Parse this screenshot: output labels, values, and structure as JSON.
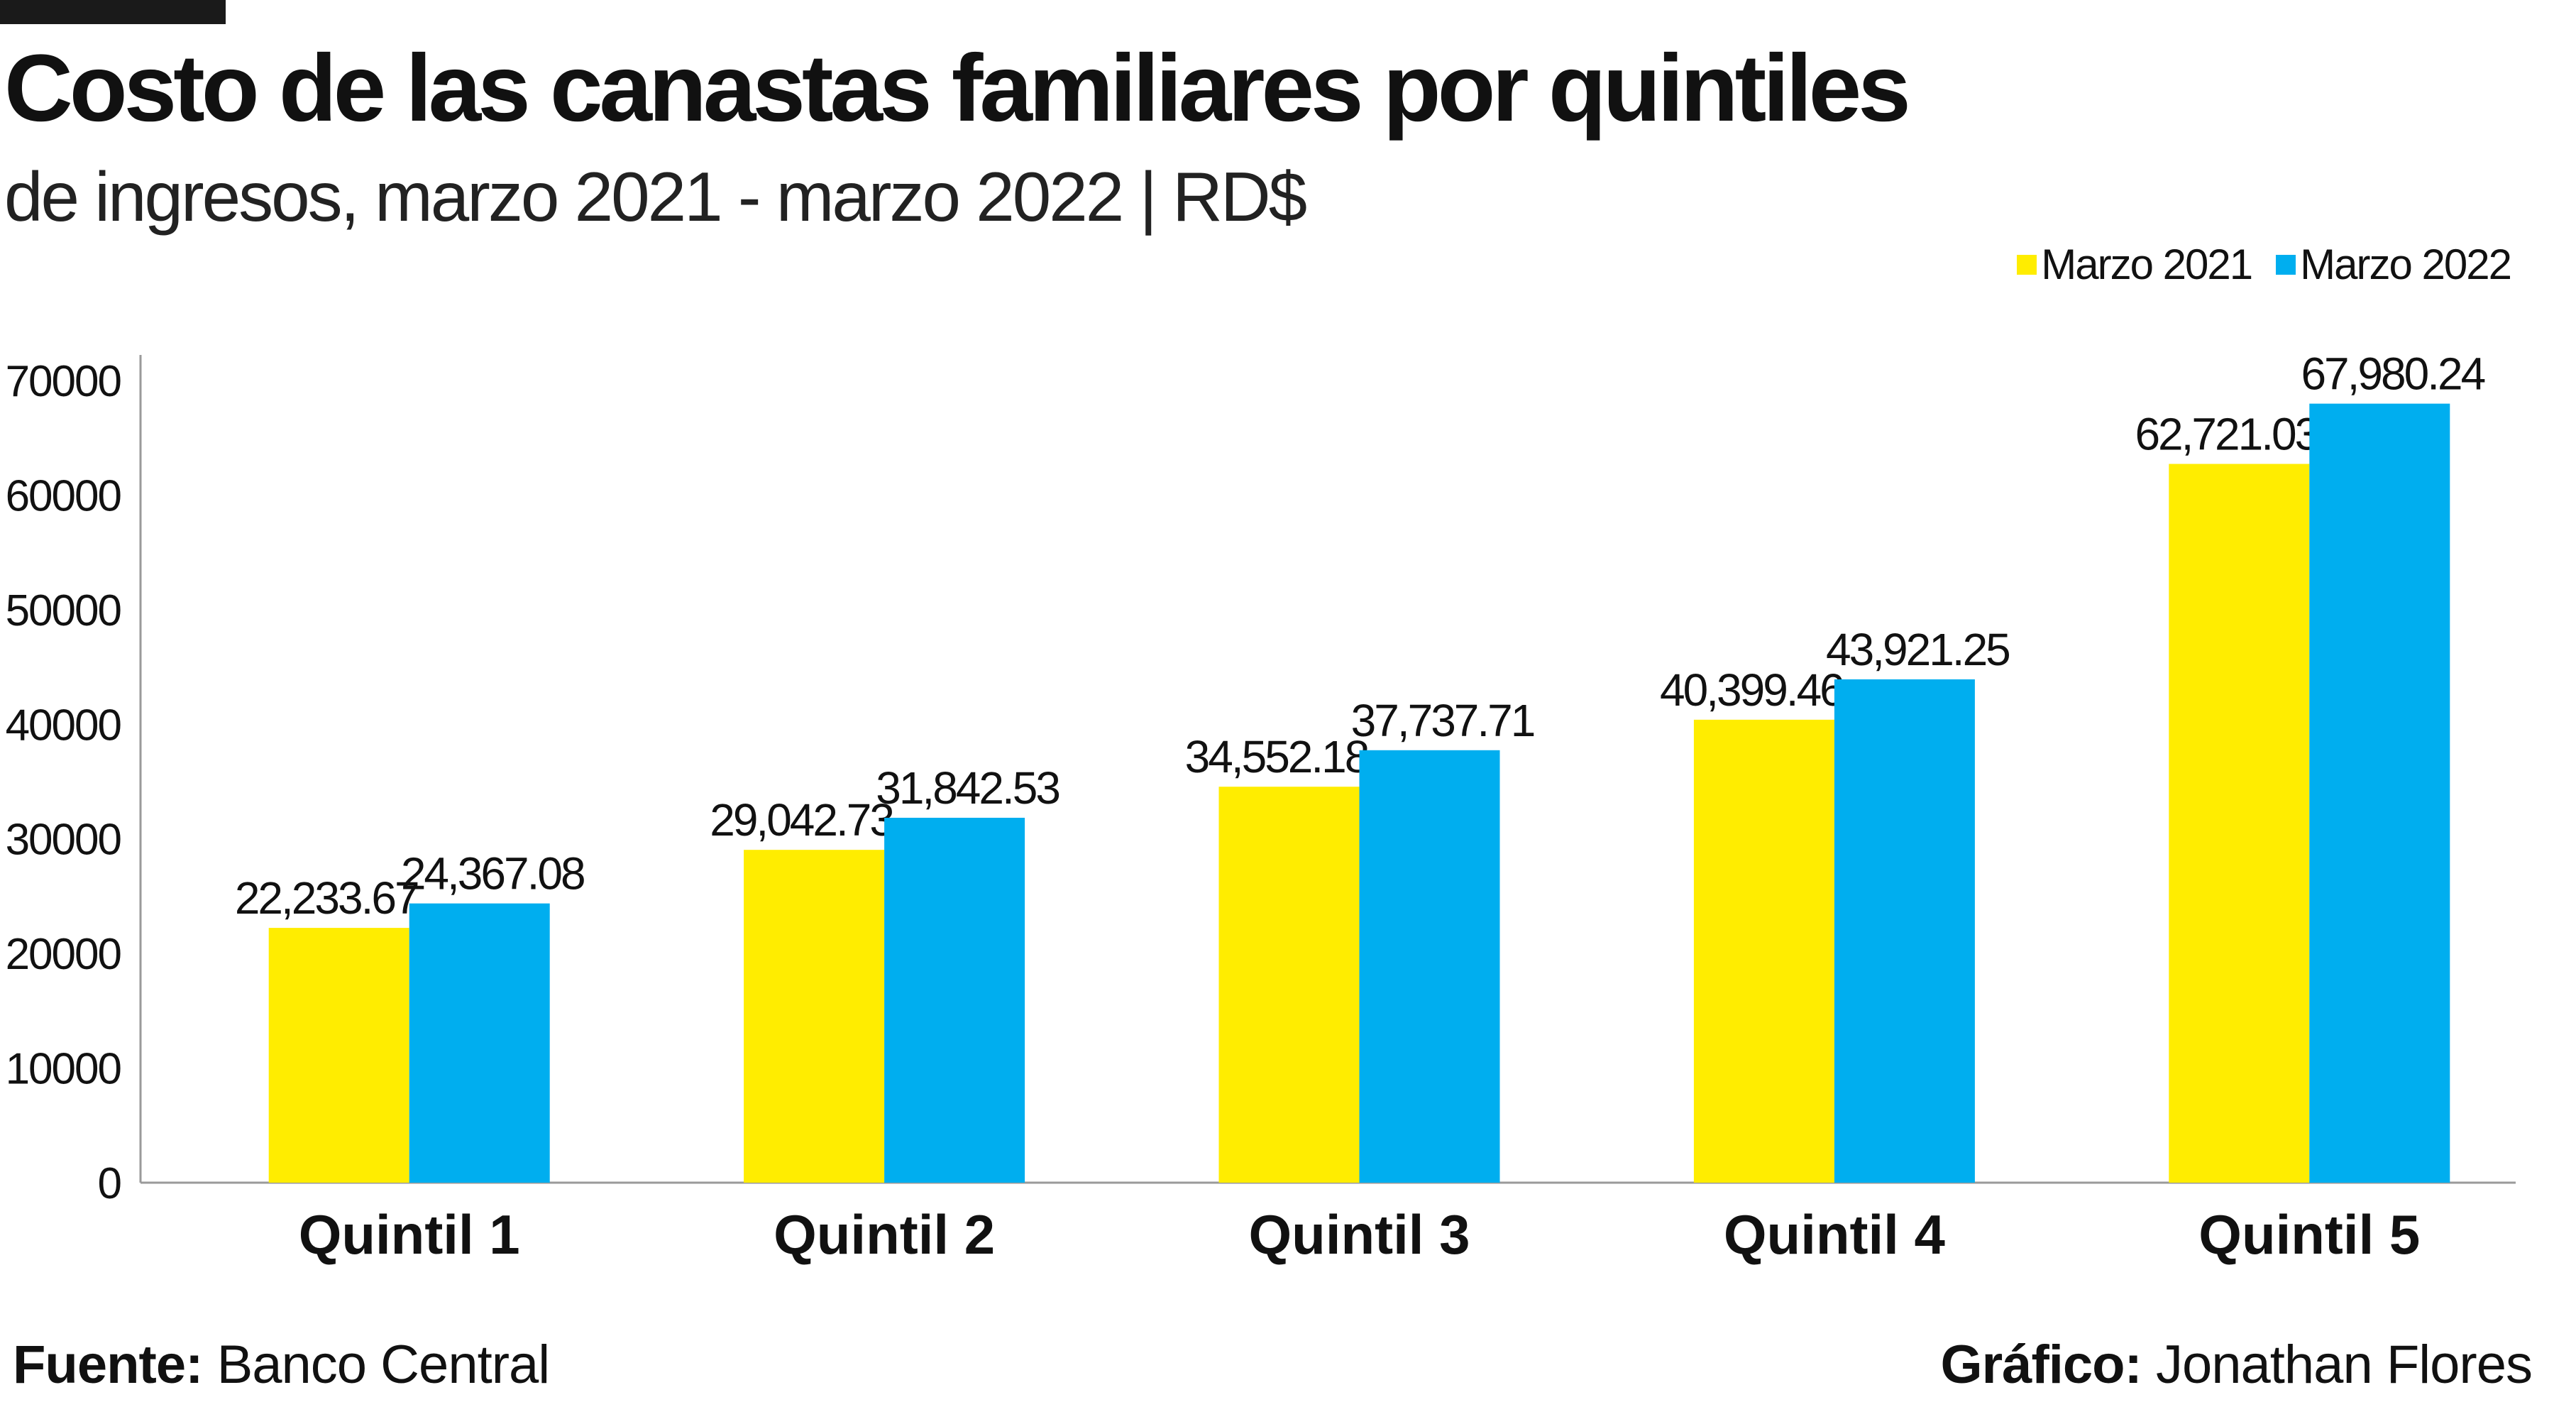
{
  "title": "Costo de las  canastas familiares por quintiles",
  "subtitle": "de ingresos, marzo 2021 - marzo 2022 | RD$",
  "legend": [
    {
      "label": "Marzo 2021",
      "color": "#FFED00"
    },
    {
      "label": "Marzo 2022",
      "color": "#00AEEF"
    }
  ],
  "footer": {
    "source_label": "Fuente:",
    "source_value": "Banco Central",
    "credit_label": "Gráfico:",
    "credit_value": "Jonathan Flores"
  },
  "chart_data": {
    "type": "bar",
    "title": "Costo de las  canastas familiares por quintiles",
    "subtitle": "de ingresos, marzo 2021 - marzo 2022 | RD$",
    "xlabel": "",
    "ylabel": "",
    "categories": [
      "Quintil 1",
      "Quintil 2",
      "Quintil 3",
      "Quintil 4",
      "Quintil 5"
    ],
    "series": [
      {
        "name": "Marzo 2021",
        "color": "#FFED00",
        "values": [
          22233.67,
          29042.73,
          34552.18,
          40399.46,
          62721.03
        ],
        "labels": [
          "22,233.67",
          "29,042.73",
          "34,552.18",
          "40,399.46",
          "62,721.03"
        ]
      },
      {
        "name": "Marzo 2022",
        "color": "#00AEEF",
        "values": [
          24367.08,
          31842.53,
          37737.71,
          43921.25,
          67980.24
        ],
        "labels": [
          "24,367.08",
          "31,842.53",
          "37,737.71",
          "43,921.25",
          "67,980.24"
        ]
      }
    ],
    "ylim": [
      0,
      70000
    ],
    "yticks": [
      "0",
      "10000",
      "20000",
      "30000",
      "40000",
      "50000",
      "60000",
      "70000"
    ],
    "grid": false,
    "legend_position": "top-right"
  }
}
